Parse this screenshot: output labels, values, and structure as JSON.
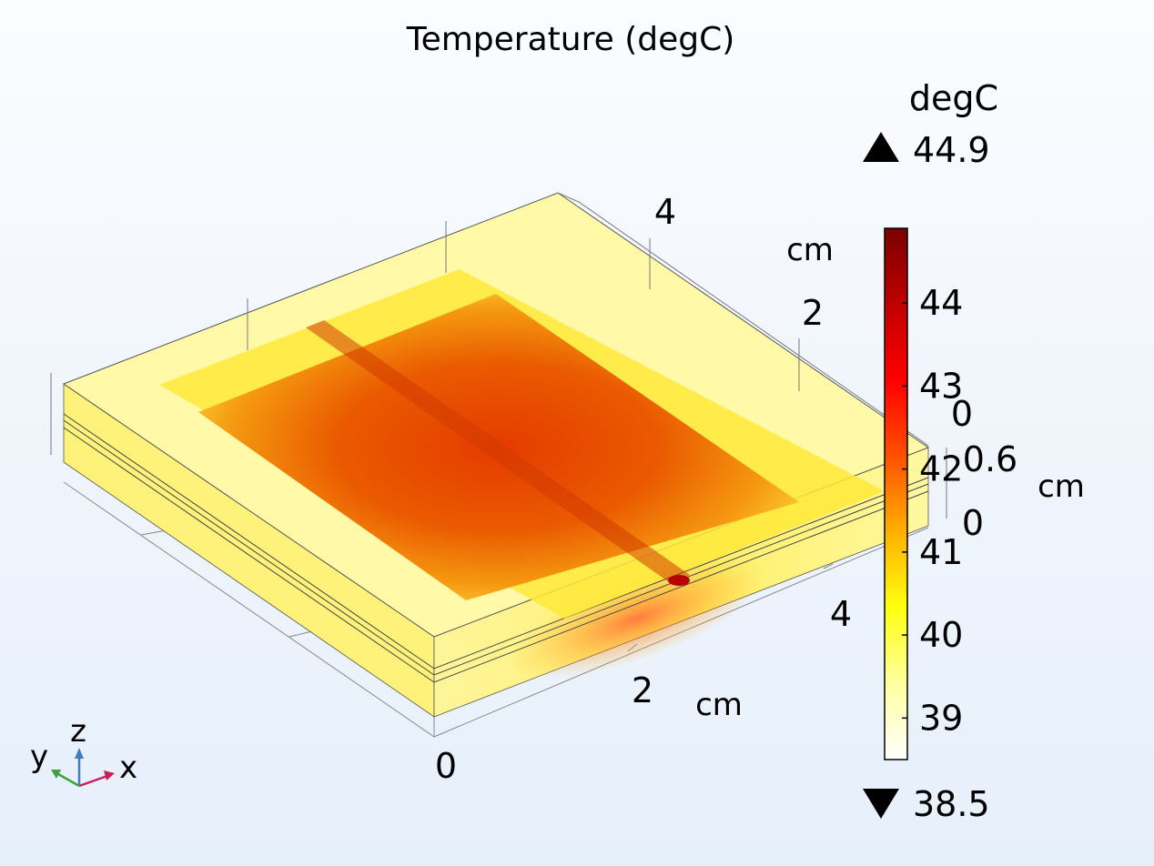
{
  "chart_data": {
    "type": "heatmap",
    "title": "Temperature (degC)",
    "colorbar": {
      "unit": "degC",
      "max_label": "44.9",
      "min_label": "38.5",
      "max": 44.9,
      "min": 38.5,
      "ticks": [
        "39",
        "40",
        "41",
        "42",
        "43",
        "44"
      ],
      "tick_values": [
        39,
        40,
        41,
        42,
        43,
        44
      ],
      "colormap": [
        "#ffffff",
        "#ffffa0",
        "#ffff10",
        "#ffb000",
        "#ff5000",
        "#ff0000",
        "#c00000",
        "#7a0000"
      ]
    },
    "axes": {
      "x": {
        "unit": "cm",
        "ticks": [
          "0",
          "2",
          "4"
        ]
      },
      "y": {
        "unit": "cm",
        "ticks": [
          "2",
          "4"
        ]
      },
      "z": {
        "unit": "cm",
        "ticks": [
          "0",
          "0.6",
          "0"
        ]
      }
    },
    "triad": {
      "x": "x",
      "y": "y",
      "z": "z"
    },
    "hotspot_color": "#c00000",
    "max_region_color": "#e43c00"
  }
}
